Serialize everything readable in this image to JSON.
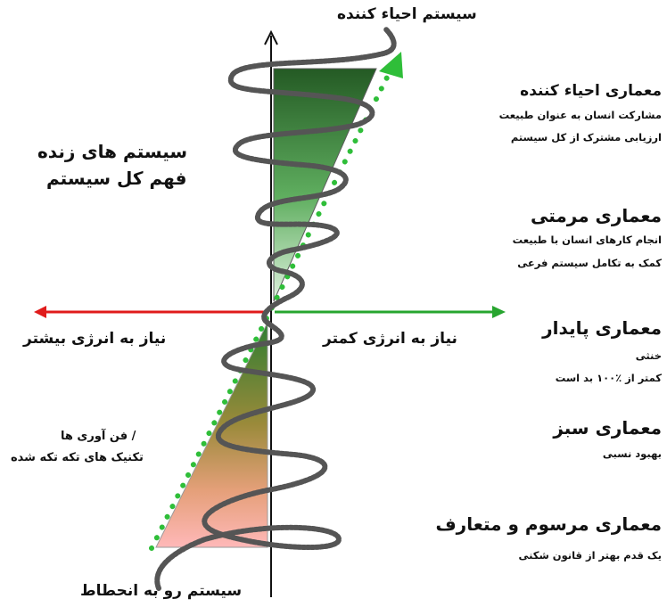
{
  "top_label": "سیستم احیاء کننده",
  "bottom_label": "سیستم رو به انحطاط",
  "left_top": {
    "line1": "سیستم های زنده",
    "line2": "فهم کل سیستم"
  },
  "left_bottom": {
    "line1": "/  فن آوری ها",
    "line2": "تکنیک های تکه تکه شده"
  },
  "axis": {
    "left_label": "نیاز به انرژی بیشتر",
    "right_label": "نیاز به انرژی کمتر"
  },
  "levels": [
    {
      "title": "معماری احیاء کننده",
      "lines": [
        "مشارکت انسان به عنوان طبیعت",
        "ارزیابی مشترک از کل سیستم"
      ]
    },
    {
      "title": "معماری مرمتی",
      "lines": [
        "انجام کارهای انسان با طبیعت",
        "کمک به تکامل سیستم فرعی"
      ]
    },
    {
      "title": "معماری پایدار",
      "lines": [
        "خنثی",
        "کمتر از ٪۱۰۰ بد است"
      ]
    },
    {
      "title": "معماری سبز",
      "lines": [
        "بهبود نسبی"
      ]
    },
    {
      "title": "معماری مرسوم و متعارف",
      "lines": [
        "یک قدم بهتر از قانون شکنی"
      ]
    }
  ],
  "colors": {
    "red_arrow": "#e01b1b",
    "green_arrow": "#27a52f",
    "dots": "#2fbe39",
    "upper_fill": "#2f6b2f",
    "lower_fill": "#f3a3a3"
  }
}
